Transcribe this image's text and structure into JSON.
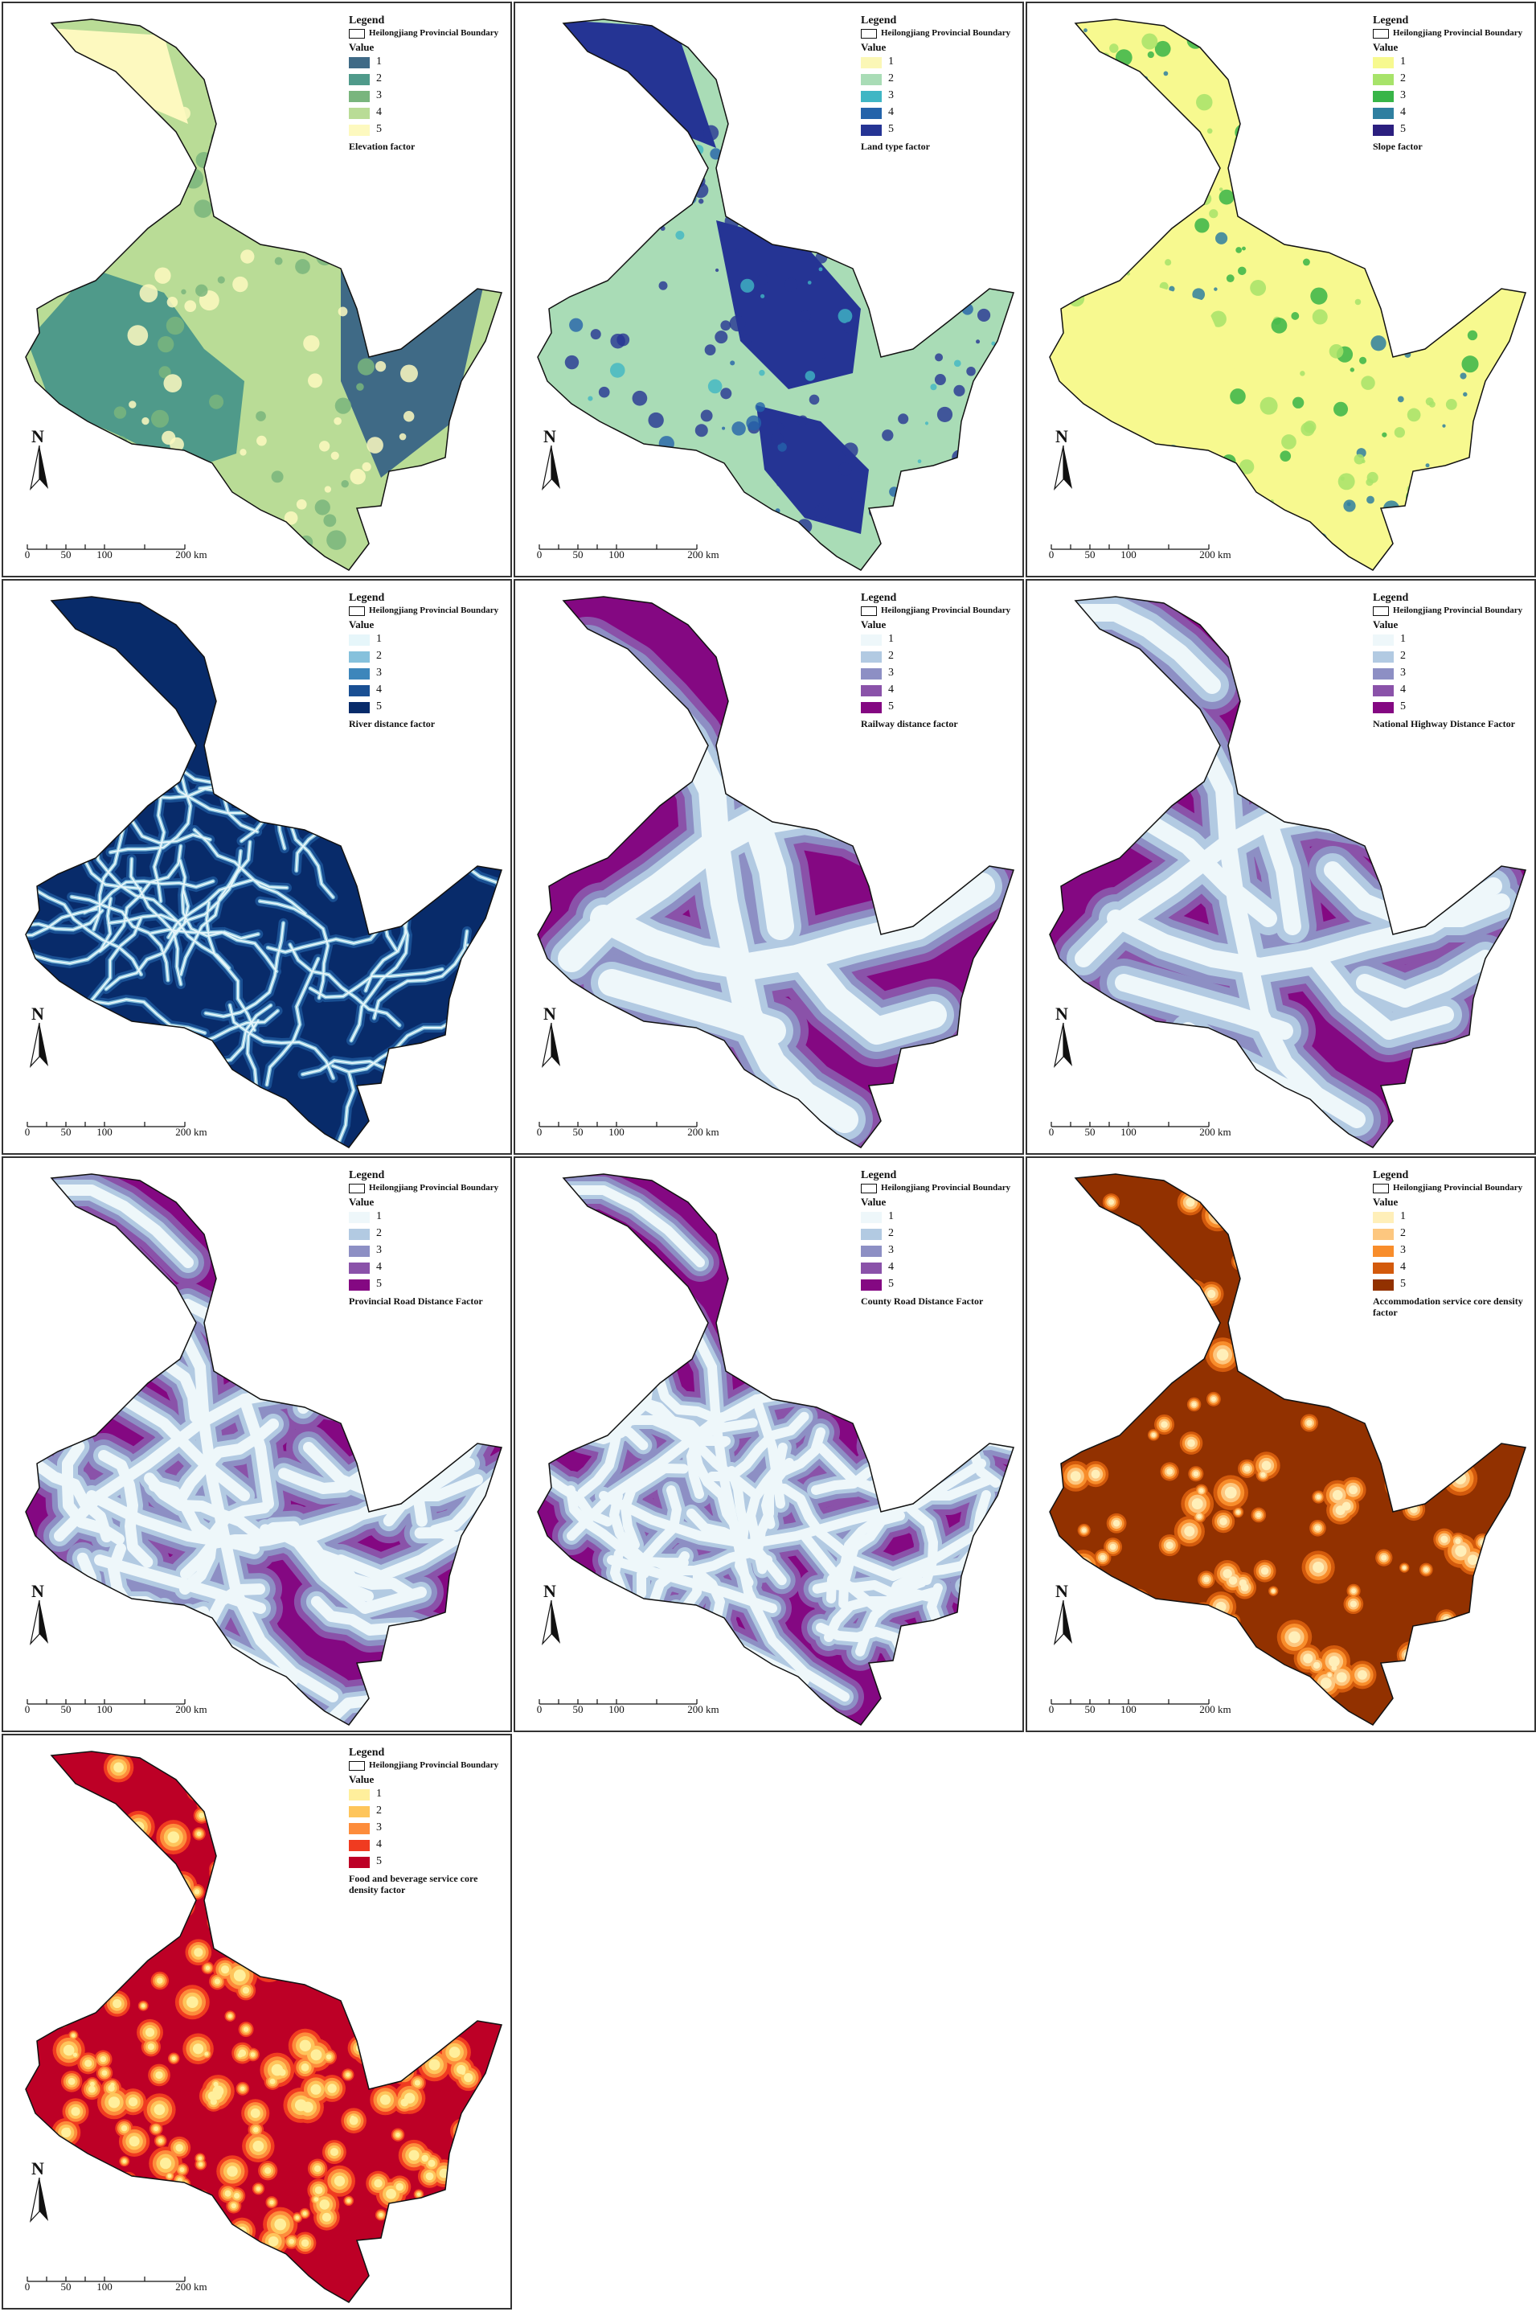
{
  "legend": {
    "title": "Legend",
    "boundary_label": "Heilongjiang Provincial Boundary",
    "value_title": "Value",
    "class_labels": [
      "1",
      "2",
      "3",
      "4",
      "5"
    ]
  },
  "scale_bar": {
    "labels": [
      "0",
      "50",
      "100",
      "200 km"
    ]
  },
  "north_label": "N",
  "panels": [
    {
      "factor": "Elevation factor",
      "colors": [
        "#3f6a86",
        "#4f9a8a",
        "#79b57d",
        "#b9dc96",
        "#fdf9bf"
      ],
      "pattern": "elevation"
    },
    {
      "factor": "Land type factor",
      "colors": [
        "#fbf7b6",
        "#a9dcb6",
        "#40b6c4",
        "#2463aa",
        "#253494"
      ],
      "pattern": "landtype"
    },
    {
      "factor": "Slope factor",
      "colors": [
        "#f7f98f",
        "#a7e36a",
        "#38b548",
        "#2f7fa0",
        "#2b1f7f"
      ],
      "pattern": "slope"
    },
    {
      "factor": "River distance factor",
      "colors": [
        "#e6f6fa",
        "#86c1dc",
        "#3d86bb",
        "#194f93",
        "#082b6a"
      ],
      "pattern": "river"
    },
    {
      "factor": "Railway distance factor",
      "colors": [
        "#eef7fa",
        "#b2cae2",
        "#8d8fc4",
        "#8a52a9",
        "#840882"
      ],
      "pattern": "railway"
    },
    {
      "factor": "National Highway Distance Factor",
      "colors": [
        "#eef7fa",
        "#b2cae2",
        "#8d8fc4",
        "#8a52a9",
        "#840882"
      ],
      "pattern": "national"
    },
    {
      "factor": "Provincial Road Distance Factor",
      "colors": [
        "#eef7fa",
        "#b2cae2",
        "#8d8fc4",
        "#8a52a9",
        "#840882"
      ],
      "pattern": "provincial"
    },
    {
      "factor": "County Road Distance Factor",
      "colors": [
        "#eef7fa",
        "#b2cae2",
        "#8d8fc4",
        "#8a52a9",
        "#840882"
      ],
      "pattern": "county"
    },
    {
      "factor": "Accommodation service core density factor",
      "colors": [
        "#ffefb9",
        "#fdc77f",
        "#f88d2b",
        "#d35a0c",
        "#923100"
      ],
      "pattern": "accommodation"
    },
    {
      "factor": "Food and beverage service core density factor",
      "colors": [
        "#ffef9c",
        "#fec55b",
        "#fd8c3b",
        "#f03b20",
        "#bd0026"
      ],
      "pattern": "food"
    }
  ]
}
